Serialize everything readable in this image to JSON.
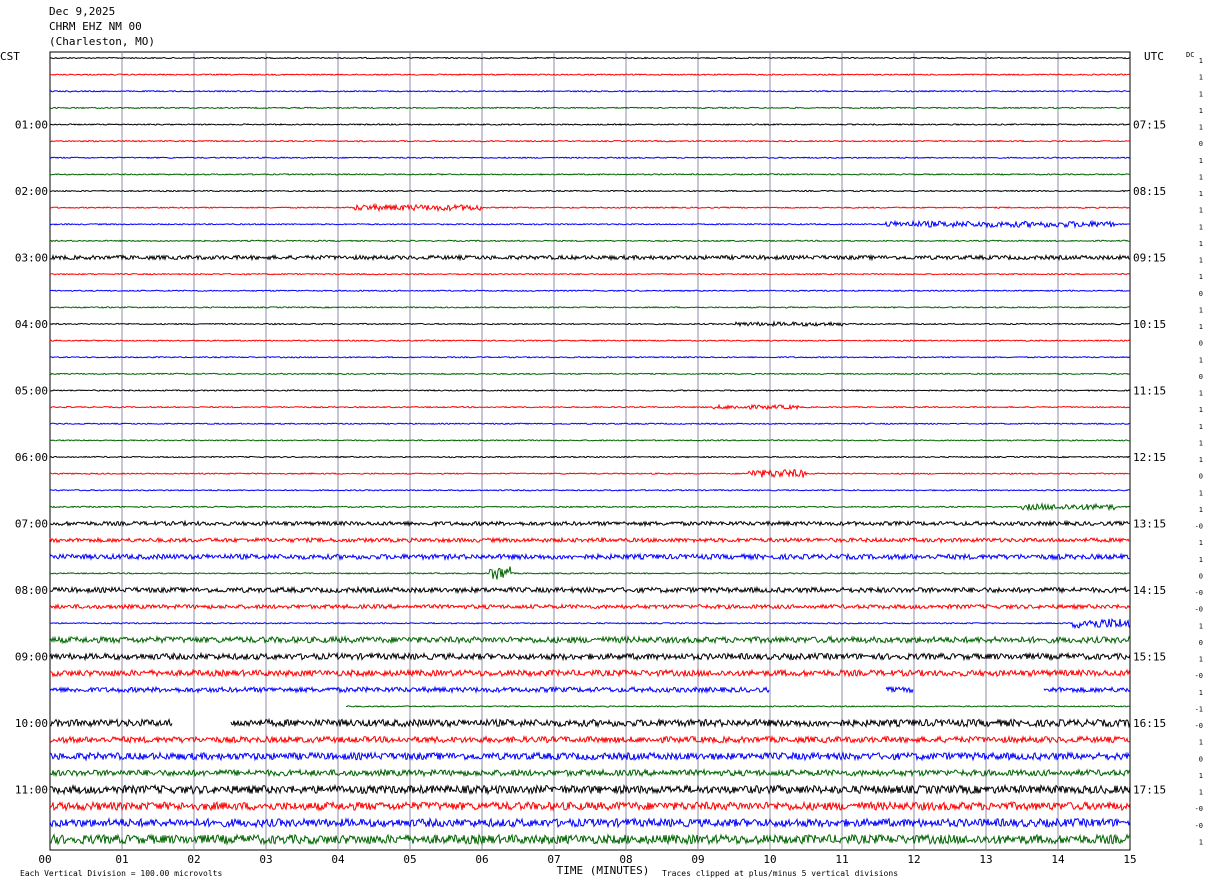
{
  "header": {
    "date": "Dec 9,2025",
    "station": "CHRM EHZ NM 00",
    "location": "(Charleston, MO)"
  },
  "chart_data": {
    "type": "line",
    "left_timezone": "CST",
    "right_timezone": "UTC",
    "dc_label": "DC",
    "xlabel": "TIME (MINUTES)",
    "x_ticks": [
      "00",
      "01",
      "02",
      "03",
      "04",
      "05",
      "06",
      "07",
      "08",
      "09",
      "10",
      "11",
      "12",
      "13",
      "14",
      "15"
    ],
    "xlim": [
      0,
      15
    ],
    "left_hour_labels": [
      "01:00",
      "02:00",
      "03:00",
      "04:00",
      "05:00",
      "06:00",
      "07:00",
      "08:00",
      "09:00",
      "10:00",
      "11:00"
    ],
    "right_hour_labels": [
      "07:15",
      "08:15",
      "09:15",
      "10:15",
      "11:15",
      "12:15",
      "13:15",
      "14:15",
      "15:15",
      "16:15",
      "17:15"
    ],
    "dc_offsets": [
      "1",
      "1",
      "1",
      "1",
      "1",
      "0",
      "1",
      "1",
      "1",
      "1",
      "1",
      "1",
      "1",
      "1",
      "0",
      "1",
      "1",
      "0",
      "1",
      "0",
      "1",
      "1",
      "1",
      "1",
      "1",
      "0",
      "1",
      "1",
      "-0",
      "1",
      "1",
      "0",
      "-0",
      "-0",
      "1",
      "0",
      "1",
      "-0",
      "1",
      "-1",
      "-0",
      "1",
      "0",
      "1",
      "1",
      "-0",
      "-0",
      "1"
    ],
    "trace_colors": [
      "#000000",
      "#ff0000",
      "#0000ff",
      "#006400"
    ],
    "grid_color": "#8c8ca8",
    "traces_per_hour": 4,
    "minutes_per_trace": 15,
    "trace_count": 48,
    "footer_left": "Each Vertical Division =  100.00 microvolts",
    "footer_right": "Traces clipped at plus/minus 5 vertical divisions",
    "activity": [
      {
        "trace": 9,
        "from": 4.2,
        "to": 6.0,
        "amp": 3
      },
      {
        "trace": 10,
        "from": 11.6,
        "to": 14.8,
        "amp": 3
      },
      {
        "trace": 12,
        "from": 0,
        "to": 15,
        "amp": 2
      },
      {
        "trace": 16,
        "from": 9.5,
        "to": 11.0,
        "amp": 2
      },
      {
        "trace": 21,
        "from": 9.2,
        "to": 10.4,
        "amp": 2
      },
      {
        "trace": 25,
        "from": 9.7,
        "to": 10.5,
        "amp": 4
      },
      {
        "trace": 27,
        "from": 13.5,
        "to": 14.8,
        "amp": 3
      },
      {
        "trace": 28,
        "from": 0,
        "to": 15,
        "amp": 2
      },
      {
        "trace": 29,
        "from": 0,
        "to": 15,
        "amp": 2
      },
      {
        "trace": 30,
        "from": 0,
        "to": 15,
        "amp": 2.5
      },
      {
        "trace": 31,
        "from": 6.1,
        "to": 6.4,
        "amp": 7
      },
      {
        "trace": 32,
        "from": 0,
        "to": 15,
        "amp": 2.5
      },
      {
        "trace": 33,
        "from": 0,
        "to": 15,
        "amp": 2
      },
      {
        "trace": 34,
        "from": 14.2,
        "to": 15,
        "amp": 5
      },
      {
        "trace": 35,
        "from": 0,
        "to": 15,
        "amp": 3
      },
      {
        "trace": 36,
        "from": 0,
        "to": 15,
        "amp": 3
      },
      {
        "trace": 37,
        "from": 0,
        "to": 15,
        "amp": 3
      },
      {
        "trace": 38,
        "from": 0,
        "to": 15,
        "amp": 2.5
      },
      {
        "trace": 40,
        "from": 0,
        "to": 15,
        "amp": 3.5
      },
      {
        "trace": 41,
        "from": 0,
        "to": 15,
        "amp": 3
      },
      {
        "trace": 42,
        "from": 0,
        "to": 15,
        "amp": 3.5
      },
      {
        "trace": 43,
        "from": 0,
        "to": 15,
        "amp": 3
      },
      {
        "trace": 44,
        "from": 0,
        "to": 15,
        "amp": 4
      },
      {
        "trace": 45,
        "from": 0,
        "to": 15,
        "amp": 4
      },
      {
        "trace": 46,
        "from": 0,
        "to": 15,
        "amp": 4
      },
      {
        "trace": 47,
        "from": 0,
        "to": 15,
        "amp": 4.5
      }
    ],
    "gaps": [
      {
        "trace": 39,
        "from": 0,
        "to": 4.1
      },
      {
        "trace": 38,
        "from": 10.0,
        "to": 11.6
      },
      {
        "trace": 38,
        "from": 12.0,
        "to": 13.8
      },
      {
        "trace": 40,
        "from": 1.7,
        "to": 2.5
      }
    ]
  }
}
